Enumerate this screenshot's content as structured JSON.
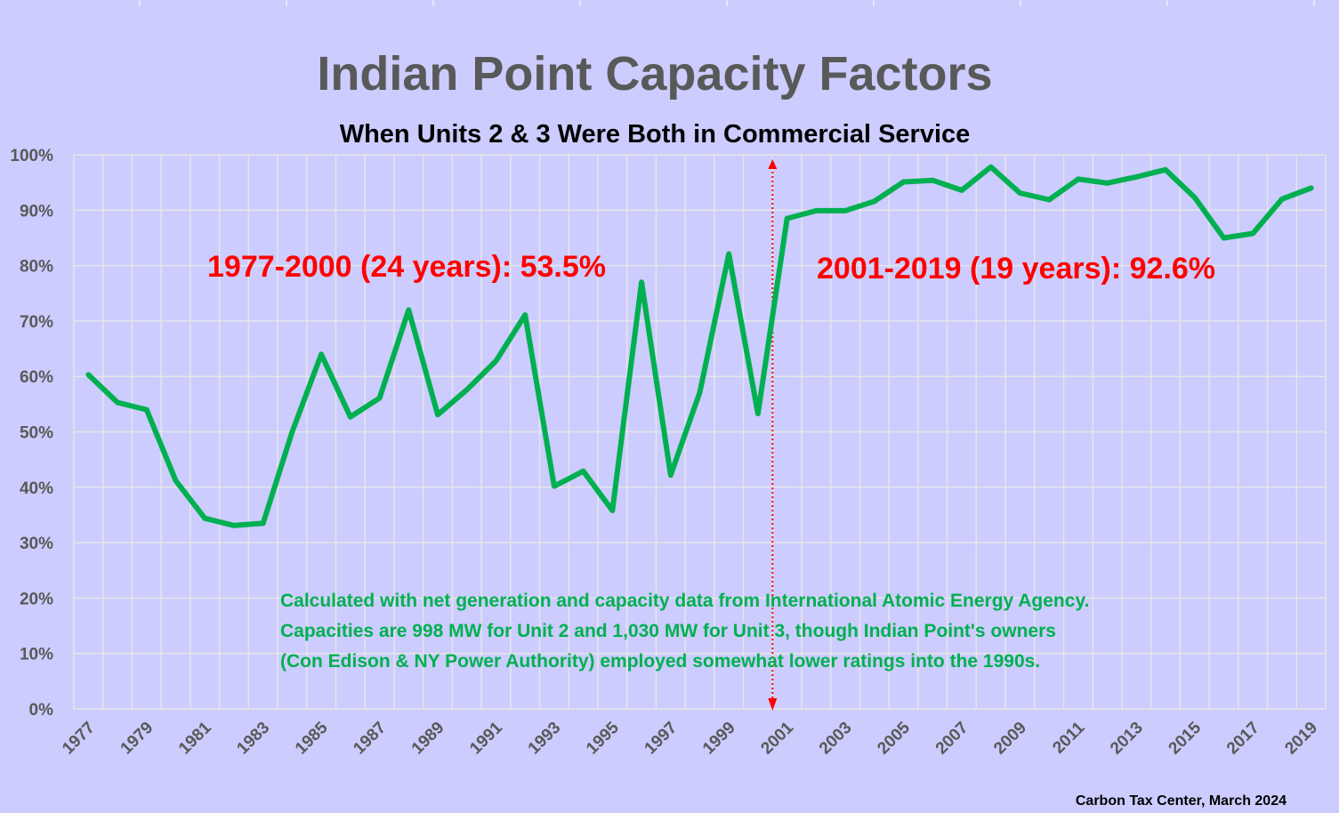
{
  "chart_data": {
    "type": "line",
    "title": "Indian Point Capacity Factors",
    "subtitle": "When Units 2 & 3 Were Both in Commercial Service",
    "x": [
      1977,
      1978,
      1979,
      1980,
      1981,
      1982,
      1983,
      1984,
      1985,
      1986,
      1987,
      1988,
      1989,
      1990,
      1991,
      1992,
      1993,
      1994,
      1995,
      1996,
      1997,
      1998,
      1999,
      2000,
      2001,
      2002,
      2003,
      2004,
      2005,
      2006,
      2007,
      2008,
      2009,
      2010,
      2011,
      2012,
      2013,
      2014,
      2015,
      2016,
      2017,
      2018,
      2019
    ],
    "x_tick_labels": [
      "1977",
      "1979",
      "1981",
      "1983",
      "1985",
      "1987",
      "1989",
      "1991",
      "1993",
      "1995",
      "1997",
      "1999",
      "2001",
      "2003",
      "2005",
      "2007",
      "2009",
      "2011",
      "2013",
      "2015",
      "2017",
      "2019"
    ],
    "series": [
      {
        "color": "#00b050",
        "values": [
          60.3,
          55.3,
          54.0,
          41.2,
          34.4,
          33.1,
          33.5,
          50.0,
          64.0,
          52.7,
          56.1,
          72.0,
          53.1,
          57.6,
          62.8,
          71.1,
          40.2,
          42.9,
          35.8,
          77.0,
          42.2,
          57.1,
          82.1,
          53.3,
          88.5,
          89.9,
          89.9,
          91.6,
          95.1,
          95.4,
          93.6,
          97.8,
          93.1,
          91.9,
          95.6,
          94.9,
          96.0,
          97.3,
          92.3,
          85.0,
          85.8,
          92.0,
          94.0
        ]
      }
    ],
    "ylim": [
      0,
      100
    ],
    "y_tick_labels": [
      "0%",
      "10%",
      "20%",
      "30%",
      "40%",
      "50%",
      "60%",
      "70%",
      "80%",
      "90%",
      "100%"
    ],
    "grid": true,
    "annotations": {
      "period_1": "1977-2000 (24 years): 53.5%",
      "period_2": "2001-2019 (19 years): 92.6%",
      "note_lines": [
        "Calculated with net generation and capacity data from International Atomic Energy Agency.",
        "Capacities are 998 MW for Unit 2 and 1,030 MW for Unit 3, though Indian Point's owners",
        "(Con Edison & NY Power Authority) employed somewhat lower ratings into the 1990s."
      ],
      "divider_color": "#ff0000",
      "annotation_color": "#ff0000",
      "note_color": "#00b050"
    },
    "credit": "Carbon Tax Center, March 2024",
    "background_color": "#ccccff",
    "grid_color": "#e6e6e6"
  }
}
